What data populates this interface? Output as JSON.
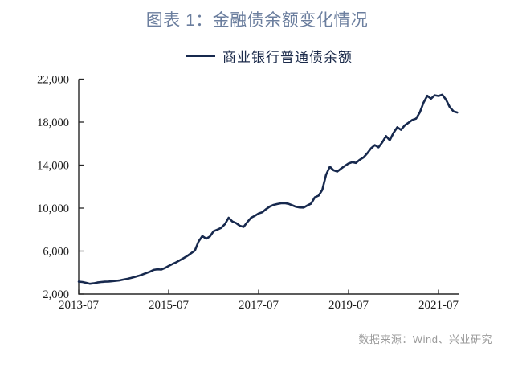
{
  "page": {
    "background": "#ffffff"
  },
  "header": {
    "title": "图表 1：金融债余额变化情况",
    "title_color": "#6b7e9e"
  },
  "legend": {
    "position": "top-center",
    "items": [
      {
        "label": "商业银行普通债余额",
        "color": "#17294e"
      }
    ]
  },
  "footer": {
    "source_text": "数据来源：Wind、兴业研究",
    "color": "#9a9a9a"
  },
  "chart_data": {
    "type": "line",
    "title": "图表 1：金融债余额变化情况",
    "legend_position": "top-center",
    "grid": false,
    "line_color": "#17294e",
    "axis_color": "#262626",
    "tick_label_color": "#1a1a1a",
    "ylim": [
      2000,
      22000
    ],
    "yticks": [
      {
        "value": 2000,
        "label": "2,000"
      },
      {
        "value": 6000,
        "label": "6,000"
      },
      {
        "value": 10000,
        "label": "10,000"
      },
      {
        "value": 14000,
        "label": "14,000"
      },
      {
        "value": 18000,
        "label": "18,000"
      },
      {
        "value": 22000,
        "label": "22,000"
      }
    ],
    "xticks": [
      {
        "label": "2013-07",
        "index": 0
      },
      {
        "label": "2015-07",
        "index": 24
      },
      {
        "label": "2017-07",
        "index": 48
      },
      {
        "label": "2019-07",
        "index": 72
      },
      {
        "label": "2021-07",
        "index": 96
      }
    ],
    "x": [
      "2013-07",
      "2013-08",
      "2013-09",
      "2013-10",
      "2013-11",
      "2013-12",
      "2014-01",
      "2014-02",
      "2014-03",
      "2014-04",
      "2014-05",
      "2014-06",
      "2014-07",
      "2014-08",
      "2014-09",
      "2014-10",
      "2014-11",
      "2014-12",
      "2015-01",
      "2015-02",
      "2015-03",
      "2015-04",
      "2015-05",
      "2015-06",
      "2015-07",
      "2015-08",
      "2015-09",
      "2015-10",
      "2015-11",
      "2015-12",
      "2016-01",
      "2016-02",
      "2016-03",
      "2016-04",
      "2016-05",
      "2016-06",
      "2016-07",
      "2016-08",
      "2016-09",
      "2016-10",
      "2016-11",
      "2016-12",
      "2017-01",
      "2017-02",
      "2017-03",
      "2017-04",
      "2017-05",
      "2017-06",
      "2017-07",
      "2017-08",
      "2017-09",
      "2017-10",
      "2017-11",
      "2017-12",
      "2018-01",
      "2018-02",
      "2018-03",
      "2018-04",
      "2018-05",
      "2018-06",
      "2018-07",
      "2018-08",
      "2018-09",
      "2018-10",
      "2018-11",
      "2018-12",
      "2019-01",
      "2019-02",
      "2019-03",
      "2019-04",
      "2019-05",
      "2019-06",
      "2019-07",
      "2019-08",
      "2019-09",
      "2019-10",
      "2019-11",
      "2019-12",
      "2020-01",
      "2020-02",
      "2020-03",
      "2020-04",
      "2020-05",
      "2020-06",
      "2020-07",
      "2020-08",
      "2020-09",
      "2020-10",
      "2020-11",
      "2020-12",
      "2021-01",
      "2021-02",
      "2021-03",
      "2021-04",
      "2021-05",
      "2021-06",
      "2021-07",
      "2021-08",
      "2021-09",
      "2021-10",
      "2021-11",
      "2021-12"
    ],
    "series": [
      {
        "name": "商业银行普通债余额",
        "color": "#17294e",
        "values": [
          3150,
          3120,
          3050,
          2960,
          3000,
          3080,
          3120,
          3150,
          3170,
          3200,
          3230,
          3280,
          3350,
          3420,
          3500,
          3600,
          3700,
          3820,
          3950,
          4080,
          4250,
          4300,
          4280,
          4420,
          4620,
          4800,
          4950,
          5150,
          5350,
          5550,
          5800,
          6050,
          6900,
          7400,
          7150,
          7350,
          7850,
          8000,
          8150,
          8500,
          9100,
          8750,
          8600,
          8350,
          8250,
          8700,
          9100,
          9280,
          9500,
          9620,
          9900,
          10150,
          10300,
          10380,
          10450,
          10460,
          10400,
          10260,
          10120,
          10060,
          10050,
          10250,
          10420,
          11000,
          11160,
          11700,
          13100,
          13850,
          13520,
          13400,
          13680,
          13920,
          14150,
          14280,
          14200,
          14500,
          14720,
          15100,
          15560,
          15860,
          15650,
          16120,
          16700,
          16320,
          17000,
          17520,
          17280,
          17700,
          17950,
          18200,
          18320,
          18900,
          19800,
          20450,
          20180,
          20500,
          20430,
          20550,
          20100,
          19400,
          19000,
          18900
        ]
      }
    ]
  }
}
